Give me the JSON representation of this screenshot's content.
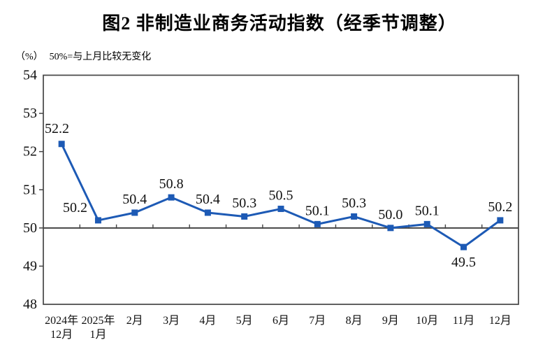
{
  "header": {
    "title": "图2 非制造业商务活动指数（经季节调整）",
    "unit_label": "（%）",
    "baseline_note": "50%=与上月比较无变化"
  },
  "chart_data": {
    "type": "line",
    "title": "图2 非制造业商务活动指数（经季节调整）",
    "unit_label": "（%）",
    "baseline_note": "50%=与上月比较无变化",
    "series_name": "非制造业商务活动指数",
    "categories": [
      [
        "2024年",
        "12月"
      ],
      [
        "2025年",
        "1月"
      ],
      "2月",
      "3月",
      "4月",
      "5月",
      "6月",
      "7月",
      "8月",
      "9月",
      "10月",
      "11月",
      "12月"
    ],
    "values": [
      52.2,
      50.2,
      50.4,
      50.8,
      50.4,
      50.3,
      50.5,
      50.1,
      50.3,
      50.0,
      50.1,
      49.5,
      50.2
    ],
    "ylim": [
      48,
      54
    ],
    "ytick_interval": 1,
    "yticks": [
      48,
      49,
      50,
      51,
      52,
      53,
      54
    ],
    "baseline": 50,
    "grid": false,
    "legend": "none",
    "marker": "square",
    "label_positions": [
      "at-axis",
      "above-left",
      "above",
      "above",
      "above",
      "above",
      "above",
      "above",
      "above",
      "above",
      "above",
      "below",
      "above"
    ],
    "line_color": "#1d5ab5",
    "marker_color": "#1d5ab5",
    "axis_color": "#454545",
    "label_color": "#111111"
  }
}
